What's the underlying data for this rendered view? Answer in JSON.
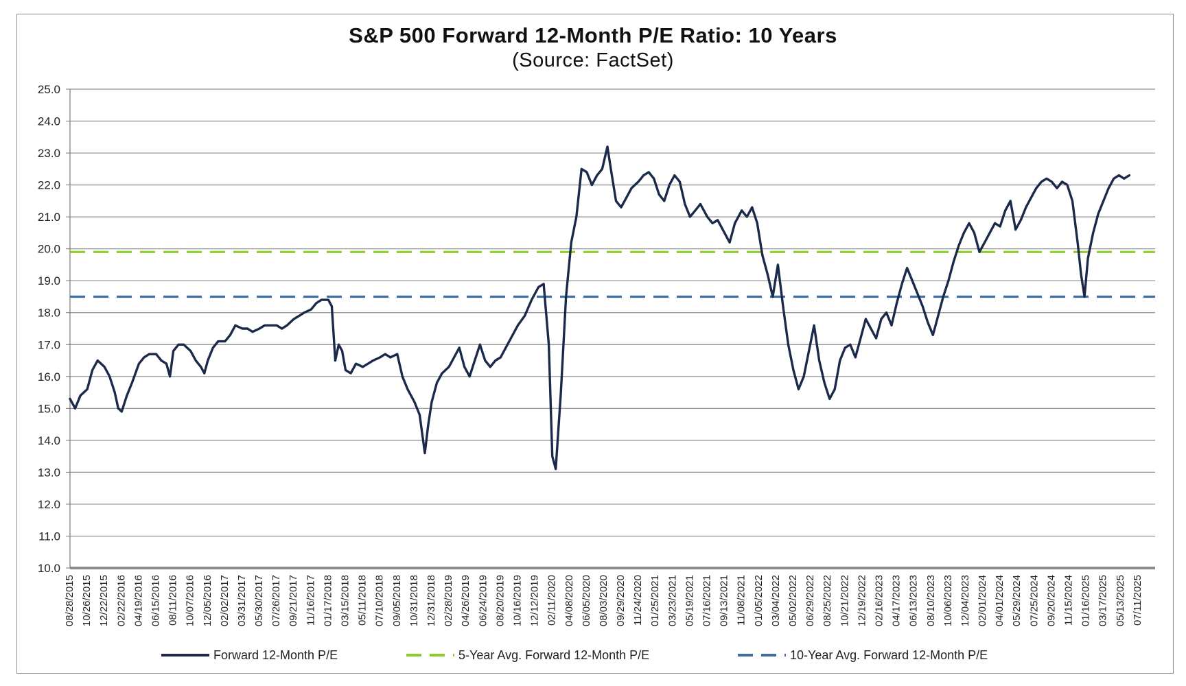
{
  "chart_data": {
    "type": "line",
    "title": "S&P 500 Forward 12-Month P/E Ratio: 10 Years",
    "subtitle": "(Source: FactSet)",
    "xlabel": "",
    "ylabel": "",
    "ylim": [
      10,
      25
    ],
    "grid": true,
    "y_ticks": [
      25,
      24,
      23,
      22,
      21,
      20,
      19,
      18,
      17,
      16,
      15,
      14,
      13,
      12,
      11,
      10
    ],
    "y_tick_labels": [
      "25.0",
      "24.0",
      "23.0",
      "22.0",
      "21.0",
      "20.0",
      "19.0",
      "18.0",
      "17.0",
      "16.0",
      "15.0",
      "14.0",
      "13.0",
      "12.0",
      "11.0",
      "10.0"
    ],
    "x_tick_labels": [
      "08/28/2015",
      "10/26/2015",
      "12/22/2015",
      "02/22/2016",
      "04/19/2016",
      "06/15/2016",
      "08/11/2016",
      "10/07/2016",
      "12/05/2016",
      "02/02/2017",
      "03/31/2017",
      "05/30/2017",
      "07/26/2017",
      "09/21/2017",
      "11/16/2017",
      "01/17/2018",
      "03/15/2018",
      "05/11/2018",
      "07/10/2018",
      "09/05/2018",
      "10/31/2018",
      "12/31/2018",
      "02/28/2019",
      "04/26/2019",
      "06/24/2019",
      "08/20/2019",
      "10/16/2019",
      "12/12/2019",
      "02/11/2020",
      "04/08/2020",
      "06/05/2020",
      "08/03/2020",
      "09/29/2020",
      "11/24/2020",
      "01/25/2021",
      "03/23/2021",
      "05/19/2021",
      "07/16/2021",
      "09/13/2021",
      "11/08/2021",
      "01/05/2022",
      "03/04/2022",
      "05/02/2022",
      "06/29/2022",
      "08/25/2022",
      "10/21/2022",
      "12/19/2022",
      "02/16/2023",
      "04/17/2023",
      "06/13/2023",
      "08/10/2023",
      "10/06/2023",
      "12/04/2023",
      "02/01/2024",
      "04/01/2024",
      "05/29/2024",
      "07/25/2024",
      "09/20/2024",
      "11/15/2024",
      "01/16/2025",
      "03/17/2025",
      "05/13/2025",
      "07/11/2025"
    ],
    "series": [
      {
        "name": "Forward 12-Month P/E",
        "color": "#1b2a4a",
        "style": "solid",
        "points": [
          [
            0,
            15.3
          ],
          [
            0.3,
            15.0
          ],
          [
            0.6,
            15.4
          ],
          [
            1.0,
            15.6
          ],
          [
            1.3,
            16.2
          ],
          [
            1.6,
            16.5
          ],
          [
            2.0,
            16.3
          ],
          [
            2.3,
            16.0
          ],
          [
            2.6,
            15.5
          ],
          [
            2.8,
            15.0
          ],
          [
            3.0,
            14.9
          ],
          [
            3.3,
            15.4
          ],
          [
            3.6,
            15.8
          ],
          [
            4.0,
            16.4
          ],
          [
            4.3,
            16.6
          ],
          [
            4.6,
            16.7
          ],
          [
            5.0,
            16.7
          ],
          [
            5.3,
            16.5
          ],
          [
            5.6,
            16.4
          ],
          [
            5.8,
            16.0
          ],
          [
            6.0,
            16.8
          ],
          [
            6.3,
            17.0
          ],
          [
            6.6,
            17.0
          ],
          [
            7.0,
            16.8
          ],
          [
            7.3,
            16.5
          ],
          [
            7.6,
            16.3
          ],
          [
            7.8,
            16.1
          ],
          [
            8.0,
            16.5
          ],
          [
            8.3,
            16.9
          ],
          [
            8.6,
            17.1
          ],
          [
            9.0,
            17.1
          ],
          [
            9.3,
            17.3
          ],
          [
            9.6,
            17.6
          ],
          [
            10.0,
            17.5
          ],
          [
            10.3,
            17.5
          ],
          [
            10.6,
            17.4
          ],
          [
            11.0,
            17.5
          ],
          [
            11.3,
            17.6
          ],
          [
            11.6,
            17.6
          ],
          [
            12.0,
            17.6
          ],
          [
            12.3,
            17.5
          ],
          [
            12.6,
            17.6
          ],
          [
            13.0,
            17.8
          ],
          [
            13.3,
            17.9
          ],
          [
            13.6,
            18.0
          ],
          [
            14.0,
            18.1
          ],
          [
            14.3,
            18.3
          ],
          [
            14.6,
            18.4
          ],
          [
            15.0,
            18.4
          ],
          [
            15.2,
            18.2
          ],
          [
            15.4,
            16.5
          ],
          [
            15.6,
            17.0
          ],
          [
            15.8,
            16.8
          ],
          [
            16.0,
            16.2
          ],
          [
            16.3,
            16.1
          ],
          [
            16.6,
            16.4
          ],
          [
            17.0,
            16.3
          ],
          [
            17.3,
            16.4
          ],
          [
            17.6,
            16.5
          ],
          [
            18.0,
            16.6
          ],
          [
            18.3,
            16.7
          ],
          [
            18.6,
            16.6
          ],
          [
            19.0,
            16.7
          ],
          [
            19.3,
            16.0
          ],
          [
            19.6,
            15.6
          ],
          [
            20.0,
            15.2
          ],
          [
            20.3,
            14.8
          ],
          [
            20.6,
            13.6
          ],
          [
            20.8,
            14.5
          ],
          [
            21.0,
            15.2
          ],
          [
            21.3,
            15.8
          ],
          [
            21.6,
            16.1
          ],
          [
            22.0,
            16.3
          ],
          [
            22.3,
            16.6
          ],
          [
            22.6,
            16.9
          ],
          [
            22.9,
            16.3
          ],
          [
            23.2,
            16.0
          ],
          [
            23.5,
            16.5
          ],
          [
            23.8,
            17.0
          ],
          [
            24.1,
            16.5
          ],
          [
            24.4,
            16.3
          ],
          [
            24.7,
            16.5
          ],
          [
            25.0,
            16.6
          ],
          [
            25.3,
            16.9
          ],
          [
            25.6,
            17.2
          ],
          [
            26.0,
            17.6
          ],
          [
            26.4,
            17.9
          ],
          [
            26.8,
            18.4
          ],
          [
            27.2,
            18.8
          ],
          [
            27.5,
            18.9
          ],
          [
            27.8,
            17.0
          ],
          [
            28.0,
            13.5
          ],
          [
            28.2,
            13.1
          ],
          [
            28.5,
            15.5
          ],
          [
            28.8,
            18.5
          ],
          [
            29.1,
            20.2
          ],
          [
            29.4,
            21.0
          ],
          [
            29.7,
            22.5
          ],
          [
            30.0,
            22.4
          ],
          [
            30.3,
            22.0
          ],
          [
            30.6,
            22.3
          ],
          [
            30.9,
            22.5
          ],
          [
            31.2,
            23.2
          ],
          [
            31.4,
            22.5
          ],
          [
            31.7,
            21.5
          ],
          [
            32.0,
            21.3
          ],
          [
            32.3,
            21.6
          ],
          [
            32.6,
            21.9
          ],
          [
            33.0,
            22.1
          ],
          [
            33.3,
            22.3
          ],
          [
            33.6,
            22.4
          ],
          [
            33.9,
            22.2
          ],
          [
            34.2,
            21.7
          ],
          [
            34.5,
            21.5
          ],
          [
            34.8,
            22.0
          ],
          [
            35.1,
            22.3
          ],
          [
            35.4,
            22.1
          ],
          [
            35.7,
            21.4
          ],
          [
            36.0,
            21.0
          ],
          [
            36.3,
            21.2
          ],
          [
            36.6,
            21.4
          ],
          [
            37.0,
            21.0
          ],
          [
            37.3,
            20.8
          ],
          [
            37.6,
            20.9
          ],
          [
            38.0,
            20.5
          ],
          [
            38.3,
            20.2
          ],
          [
            38.6,
            20.8
          ],
          [
            39.0,
            21.2
          ],
          [
            39.3,
            21.0
          ],
          [
            39.6,
            21.3
          ],
          [
            39.9,
            20.8
          ],
          [
            40.2,
            19.8
          ],
          [
            40.5,
            19.2
          ],
          [
            40.8,
            18.5
          ],
          [
            41.1,
            19.5
          ],
          [
            41.4,
            18.2
          ],
          [
            41.7,
            17.0
          ],
          [
            42.0,
            16.2
          ],
          [
            42.3,
            15.6
          ],
          [
            42.6,
            16.0
          ],
          [
            42.9,
            16.8
          ],
          [
            43.2,
            17.6
          ],
          [
            43.5,
            16.5
          ],
          [
            43.8,
            15.8
          ],
          [
            44.1,
            15.3
          ],
          [
            44.4,
            15.6
          ],
          [
            44.7,
            16.5
          ],
          [
            45.0,
            16.9
          ],
          [
            45.3,
            17.0
          ],
          [
            45.6,
            16.6
          ],
          [
            45.9,
            17.2
          ],
          [
            46.2,
            17.8
          ],
          [
            46.5,
            17.5
          ],
          [
            46.8,
            17.2
          ],
          [
            47.1,
            17.8
          ],
          [
            47.4,
            18.0
          ],
          [
            47.7,
            17.6
          ],
          [
            48.0,
            18.3
          ],
          [
            48.3,
            18.9
          ],
          [
            48.6,
            19.4
          ],
          [
            48.9,
            19.0
          ],
          [
            49.2,
            18.6
          ],
          [
            49.5,
            18.2
          ],
          [
            49.8,
            17.7
          ],
          [
            50.1,
            17.3
          ],
          [
            50.4,
            17.9
          ],
          [
            50.7,
            18.5
          ],
          [
            51.0,
            19.0
          ],
          [
            51.3,
            19.6
          ],
          [
            51.6,
            20.1
          ],
          [
            51.9,
            20.5
          ],
          [
            52.2,
            20.8
          ],
          [
            52.5,
            20.5
          ],
          [
            52.8,
            19.9
          ],
          [
            53.1,
            20.2
          ],
          [
            53.4,
            20.5
          ],
          [
            53.7,
            20.8
          ],
          [
            54.0,
            20.7
          ],
          [
            54.3,
            21.2
          ],
          [
            54.6,
            21.5
          ],
          [
            54.9,
            20.6
          ],
          [
            55.2,
            20.9
          ],
          [
            55.5,
            21.3
          ],
          [
            55.8,
            21.6
          ],
          [
            56.1,
            21.9
          ],
          [
            56.4,
            22.1
          ],
          [
            56.7,
            22.2
          ],
          [
            57.0,
            22.1
          ],
          [
            57.3,
            21.9
          ],
          [
            57.6,
            22.1
          ],
          [
            57.9,
            22.0
          ],
          [
            58.2,
            21.5
          ],
          [
            58.5,
            20.2
          ],
          [
            58.7,
            19.2
          ],
          [
            58.9,
            18.5
          ],
          [
            59.1,
            19.7
          ],
          [
            59.4,
            20.5
          ],
          [
            59.7,
            21.1
          ],
          [
            60.0,
            21.5
          ],
          [
            60.3,
            21.9
          ],
          [
            60.6,
            22.2
          ],
          [
            60.9,
            22.3
          ],
          [
            61.2,
            22.2
          ],
          [
            61.5,
            22.3
          ]
        ]
      },
      {
        "name": "5-Year Avg. Forward 12-Month P/E",
        "color": "#8ccd2c",
        "style": "dashed",
        "value": 19.9
      },
      {
        "name": "10-Year Avg. Forward 12-Month P/E",
        "color": "#3f6ea5",
        "style": "dashed",
        "value": 18.5
      }
    ],
    "legend": [
      "Forward 12-Month P/E",
      "5-Year Avg. Forward 12-Month P/E",
      "10-Year Avg. Forward 12-Month P/E"
    ],
    "legend_position": "bottom"
  }
}
